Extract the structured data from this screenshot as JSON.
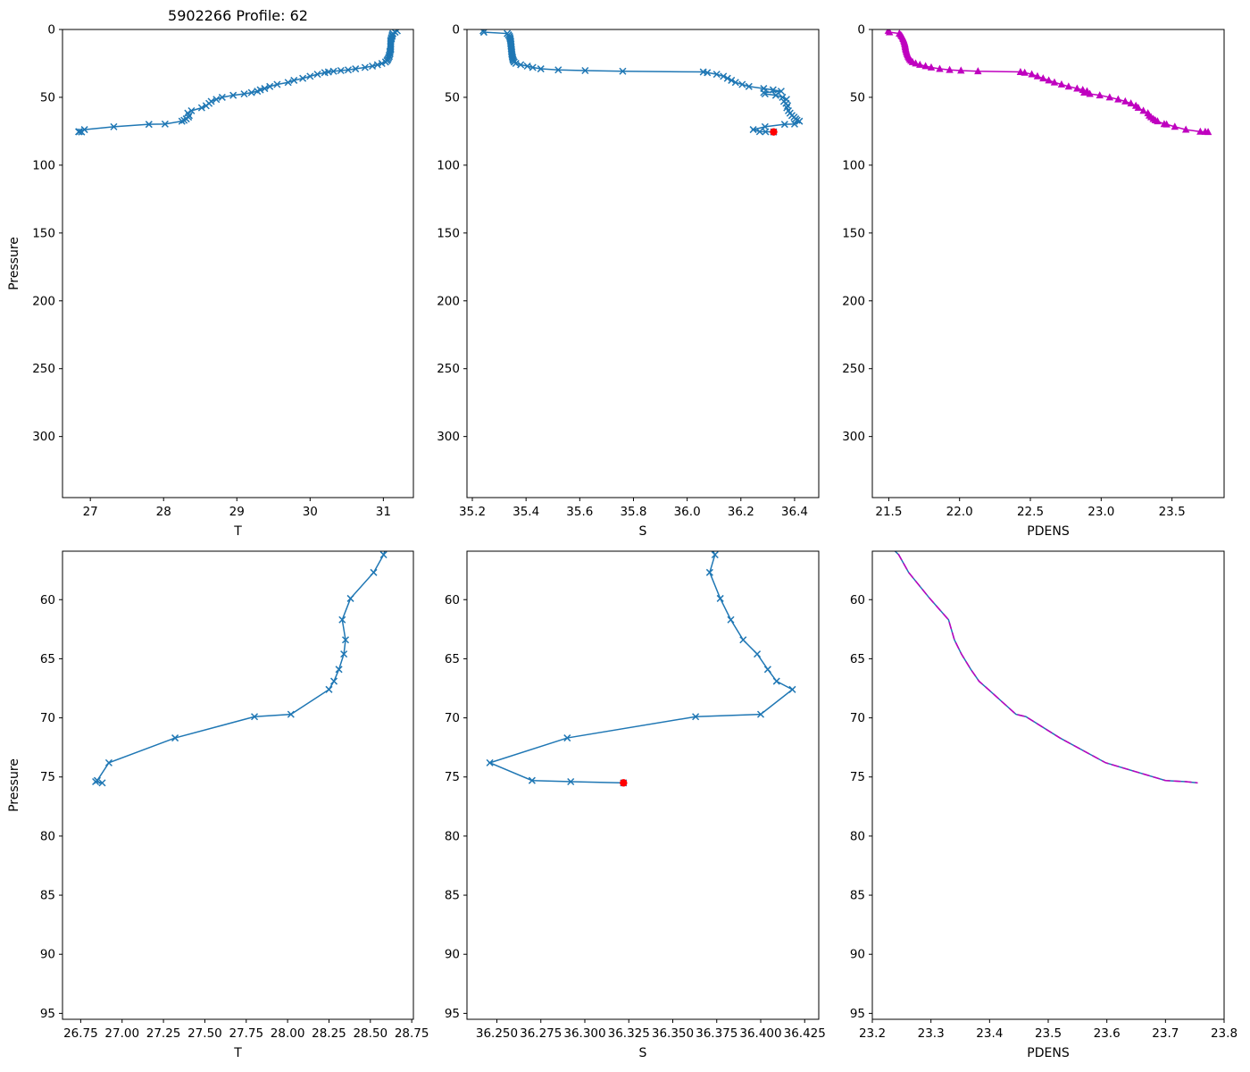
{
  "colors": {
    "blue": "#1f77b4",
    "magenta": "#bf00bf",
    "red": "#ff0000",
    "axis": "#000000"
  },
  "chart_data": {
    "type": "line",
    "title": "5902266 Profile: 62",
    "legend": "none",
    "grid": false,
    "y_axis_inverted": true,
    "profile": {
      "pressure": [
        1.0,
        2.0,
        3.0,
        4.0,
        5.0,
        6.0,
        7.0,
        8.0,
        9.0,
        10.0,
        11.0,
        12.0,
        13.0,
        14.0,
        15.0,
        16.0,
        17.0,
        18.0,
        19.0,
        20.0,
        21.0,
        22.0,
        23.0,
        24.0,
        25.0,
        26.0,
        27.0,
        28.0,
        29.0,
        29.8,
        30.3,
        30.8,
        31.3,
        31.8,
        33.0,
        34.5,
        36.0,
        37.5,
        39.0,
        40.5,
        42.0,
        43.5,
        44.5,
        45.5,
        46.5,
        47.5,
        48.5,
        50.0,
        51.5,
        53.0,
        54.5,
        56.2,
        57.7,
        59.9,
        61.7,
        63.4,
        64.6,
        65.9,
        66.9,
        67.6,
        69.7,
        69.9,
        71.7,
        73.8,
        75.3,
        75.4,
        75.5
      ],
      "T": [
        31.19,
        31.16,
        31.13,
        31.12,
        31.12,
        31.11,
        31.11,
        31.1,
        31.1,
        31.1,
        31.1,
        31.1,
        31.1,
        31.1,
        31.1,
        31.09,
        31.09,
        31.09,
        31.08,
        31.08,
        31.07,
        31.06,
        31.05,
        31.03,
        30.98,
        30.92,
        30.85,
        30.75,
        30.62,
        30.52,
        30.42,
        30.32,
        30.25,
        30.2,
        30.1,
        30.0,
        29.9,
        29.78,
        29.7,
        29.55,
        29.45,
        29.38,
        29.32,
        29.28,
        29.2,
        29.1,
        28.95,
        28.8,
        28.72,
        28.65,
        28.62,
        28.58,
        28.52,
        28.38,
        28.33,
        28.35,
        28.34,
        28.31,
        28.28,
        28.25,
        28.02,
        27.8,
        27.32,
        26.92,
        26.85,
        26.84,
        26.88
      ],
      "S": [
        35.24,
        35.243,
        35.33,
        35.335,
        35.338,
        35.34,
        35.341,
        35.342,
        35.343,
        35.343,
        35.344,
        35.344,
        35.345,
        35.345,
        35.346,
        35.346,
        35.347,
        35.347,
        35.348,
        35.349,
        35.35,
        35.351,
        35.353,
        35.356,
        35.362,
        35.38,
        35.405,
        35.425,
        35.455,
        35.52,
        35.62,
        35.76,
        36.06,
        36.075,
        36.11,
        36.135,
        36.15,
        36.165,
        36.18,
        36.205,
        36.23,
        36.285,
        36.32,
        36.35,
        36.285,
        36.29,
        36.33,
        36.355,
        36.37,
        36.36,
        36.368,
        36.374,
        36.371,
        36.377,
        36.383,
        36.39,
        36.398,
        36.404,
        36.409,
        36.418,
        36.4,
        36.363,
        36.29,
        36.246,
        36.27,
        36.292,
        36.322
      ],
      "PDENS": [
        21.497,
        21.505,
        21.575,
        21.585,
        21.592,
        21.598,
        21.602,
        21.606,
        21.609,
        21.612,
        21.614,
        21.616,
        21.617,
        21.619,
        21.621,
        21.624,
        21.627,
        21.63,
        21.634,
        21.638,
        21.643,
        21.649,
        21.657,
        21.668,
        21.69,
        21.72,
        21.76,
        21.8,
        21.86,
        21.93,
        22.01,
        22.13,
        22.43,
        22.46,
        22.51,
        22.55,
        22.59,
        22.63,
        22.67,
        22.72,
        22.77,
        22.83,
        22.87,
        22.9,
        22.88,
        22.92,
        22.99,
        23.06,
        23.12,
        23.17,
        23.21,
        23.245,
        23.262,
        23.298,
        23.33,
        23.34,
        23.352,
        23.368,
        23.382,
        23.398,
        23.445,
        23.462,
        23.52,
        23.598,
        23.7,
        23.735,
        23.755
      ]
    },
    "deepest_point": {
      "pressure": 75.5,
      "S": 36.322
    },
    "subplots": [
      {
        "id": "t-full",
        "xlabel": "T",
        "ylabel": "Pressure",
        "xlim": [
          26.62,
          31.41
        ],
        "ylim": [
          0,
          345
        ],
        "xtick_vals": [
          27,
          28,
          29,
          30,
          31
        ],
        "xtick_labels": [
          "27",
          "28",
          "29",
          "30",
          "31"
        ],
        "ytick_vals": [
          0,
          50,
          100,
          150,
          200,
          250,
          300
        ],
        "ytick_labels": [
          "0",
          "50",
          "100",
          "150",
          "200",
          "250",
          "300"
        ],
        "series": [
          {
            "var": "T",
            "color": "blue",
            "marker": "x",
            "dash": false
          }
        ],
        "red_dot": false
      },
      {
        "id": "s-full",
        "xlabel": "S",
        "ylabel": "",
        "xlim": [
          35.18,
          36.49
        ],
        "ylim": [
          0,
          345
        ],
        "xtick_vals": [
          35.2,
          35.4,
          35.6,
          35.8,
          36.0,
          36.2,
          36.4
        ],
        "xtick_labels": [
          "35.2",
          "35.4",
          "35.6",
          "35.8",
          "36.0",
          "36.2",
          "36.4"
        ],
        "ytick_vals": [
          0,
          50,
          100,
          150,
          200,
          250,
          300
        ],
        "ytick_labels": [
          "0",
          "50",
          "100",
          "150",
          "200",
          "250",
          "300"
        ],
        "series": [
          {
            "var": "S",
            "color": "blue",
            "marker": "x",
            "dash": false
          }
        ],
        "red_dot": true
      },
      {
        "id": "pdens-full",
        "xlabel": "PDENS",
        "ylabel": "",
        "xlim": [
          21.384,
          23.868
        ],
        "ylim": [
          0,
          345
        ],
        "xtick_vals": [
          21.5,
          22.0,
          22.5,
          23.0,
          23.5
        ],
        "xtick_labels": [
          "21.5",
          "22.0",
          "22.5",
          "23.0",
          "23.5"
        ],
        "ytick_vals": [
          0,
          50,
          100,
          150,
          200,
          250,
          300
        ],
        "ytick_labels": [
          "0",
          "50",
          "100",
          "150",
          "200",
          "250",
          "300"
        ],
        "series": [
          {
            "var": "PDENS",
            "color": "magenta",
            "marker": "triangle",
            "dash": false
          }
        ],
        "red_dot": false
      },
      {
        "id": "t-zoom",
        "xlabel": "T",
        "ylabel": "Pressure",
        "xlim": [
          26.64,
          28.76
        ],
        "ylim": [
          55.9,
          95.5
        ],
        "xtick_vals": [
          26.75,
          27.0,
          27.25,
          27.5,
          27.75,
          28.0,
          28.25,
          28.5,
          28.75
        ],
        "xtick_labels": [
          "26.75",
          "27.00",
          "27.25",
          "27.50",
          "27.75",
          "28.00",
          "28.25",
          "28.50",
          "28.75"
        ],
        "ytick_vals": [
          60,
          65,
          70,
          75,
          80,
          85,
          90,
          95
        ],
        "ytick_labels": [
          "60",
          "65",
          "70",
          "75",
          "80",
          "85",
          "90",
          "95"
        ],
        "series": [
          {
            "var": "T",
            "color": "blue",
            "marker": "x",
            "dash": false
          }
        ],
        "red_dot": false
      },
      {
        "id": "s-zoom",
        "xlabel": "S",
        "ylabel": "",
        "xlim": [
          36.233,
          36.433
        ],
        "ylim": [
          55.9,
          95.5
        ],
        "xtick_vals": [
          36.25,
          36.275,
          36.3,
          36.325,
          36.35,
          36.375,
          36.4,
          36.425
        ],
        "xtick_labels": [
          "36.250",
          "36.275",
          "36.300",
          "36.325",
          "36.350",
          "36.375",
          "36.400",
          "36.425"
        ],
        "ytick_vals": [
          60,
          65,
          70,
          75,
          80,
          85,
          90,
          95
        ],
        "ytick_labels": [
          "60",
          "65",
          "70",
          "75",
          "80",
          "85",
          "90",
          "95"
        ],
        "series": [
          {
            "var": "S",
            "color": "blue",
            "marker": "x",
            "dash": false
          }
        ],
        "red_dot": true
      },
      {
        "id": "pdens-zoom",
        "xlabel": "PDENS",
        "ylabel": "",
        "xlim": [
          23.2,
          23.8
        ],
        "ylim": [
          55.9,
          95.5
        ],
        "xtick_vals": [
          23.2,
          23.3,
          23.4,
          23.5,
          23.6,
          23.7,
          23.8
        ],
        "xtick_labels": [
          "23.2",
          "23.3",
          "23.4",
          "23.5",
          "23.6",
          "23.7",
          "23.8"
        ],
        "ytick_vals": [
          60,
          65,
          70,
          75,
          80,
          85,
          90,
          95
        ],
        "ytick_labels": [
          "60",
          "65",
          "70",
          "75",
          "80",
          "85",
          "90",
          "95"
        ],
        "series": [
          {
            "var": "PDENS",
            "color": "blue",
            "marker": "none",
            "dash": false
          },
          {
            "var": "PDENS",
            "color": "magenta",
            "marker": "none",
            "dash": true
          }
        ],
        "red_dot": false
      }
    ]
  }
}
